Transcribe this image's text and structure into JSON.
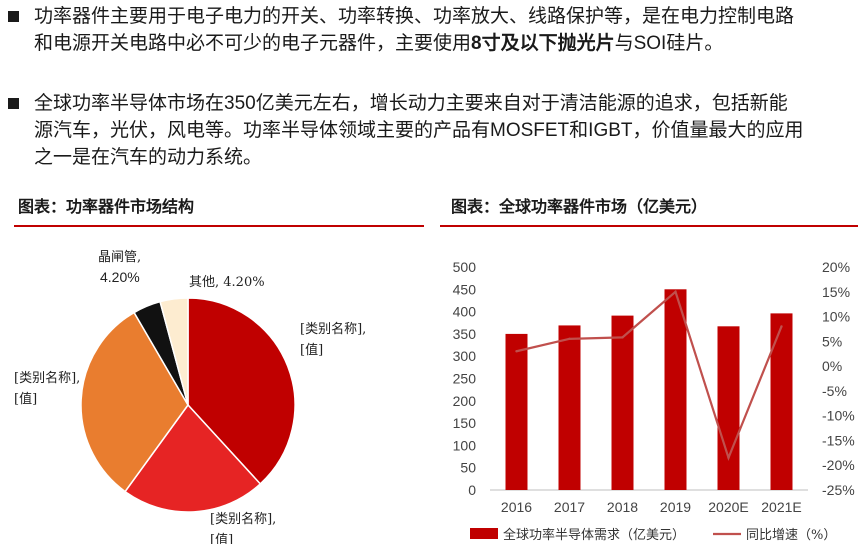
{
  "bullets": [
    {
      "line1": "功率器件主要用于电子电力的开关、功率转换、功率放大、线路保护等，是在电力控制电路",
      "line2_pre": "和电源开关电路中必不可少的电子元器件，主要使用",
      "line2_bold": "8寸及以下抛光片",
      "line2_post": "与SOI硅片。"
    },
    {
      "line1": "全球功率半导体市场在350亿美元左右，增长动力主要来自对于清洁能源的追求，包括新能",
      "line2": "源汽车，光伏，风电等。功率半导体领域主要的产品有MOSFET和IGBT，价值量最大的应用",
      "line3": "之一是在汽车的动力系统。"
    }
  ],
  "pie_title": "图表：功率器件市场结构",
  "bar_title": "图表：全球功率器件市场（亿美元）",
  "colors": {
    "accent_red": "#c00000",
    "slice_dark_red": "#c00000",
    "slice_red": "#e62424",
    "slice_orange": "#e97d2f",
    "slice_black": "#111111",
    "slice_cream": "#fdecd0",
    "line_color": "#c0504d"
  },
  "chart_data": [
    {
      "type": "pie",
      "slices": [
        {
          "label_line1": "[类别名称],",
          "label_line2": "[值]",
          "value": 38.2,
          "color": "#c00000"
        },
        {
          "label_line1": "[类别名称],",
          "label_line2": "[值]",
          "value": 21.8,
          "color": "#e62424"
        },
        {
          "label_line1": "[类别名称],",
          "label_line2": "[值]",
          "value": 31.6,
          "color": "#e97d2f"
        },
        {
          "label_line1": "晶闸管,",
          "label_line2": "4.20%",
          "value": 4.2,
          "color": "#111111"
        },
        {
          "label_line1": "其他, 4.20%",
          "label_line2": "",
          "value": 4.2,
          "color": "#fdecd0"
        }
      ]
    },
    {
      "type": "bar",
      "categories": [
        "2016",
        "2017",
        "2018",
        "2019",
        "2020E",
        "2021E"
      ],
      "series": [
        {
          "name": "全球功率半导体需求（亿美元）",
          "type": "bar",
          "axis": "left",
          "values": [
            350,
            369,
            391,
            450,
            367,
            396
          ]
        },
        {
          "name": "同比增速（%）",
          "type": "line",
          "axis": "right",
          "values": [
            3,
            5.5,
            5.8,
            15,
            -18.5,
            8
          ]
        }
      ],
      "y_left": {
        "min": 0,
        "max": 500,
        "step": 50,
        "ticks": [
          "0",
          "50",
          "100",
          "150",
          "200",
          "250",
          "300",
          "350",
          "400",
          "450",
          "500"
        ]
      },
      "y_right": {
        "min": -25,
        "max": 20,
        "step": 5,
        "ticks": [
          "-25%",
          "-20%",
          "-15%",
          "-10%",
          "-5%",
          "0%",
          "5%",
          "10%",
          "15%",
          "20%"
        ]
      },
      "legend_position": "bottom",
      "grid": false
    }
  ]
}
